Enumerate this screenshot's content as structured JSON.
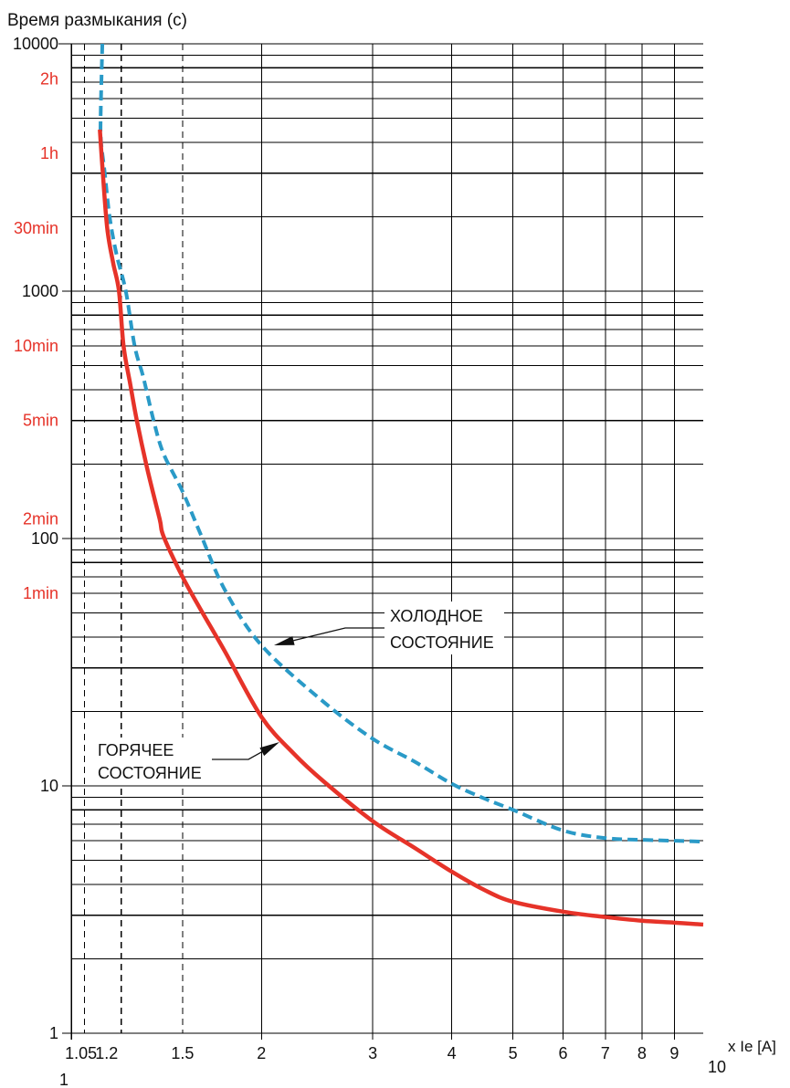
{
  "chart_data": {
    "type": "line",
    "ylabel": "Время размыкания (с)",
    "xlabel": "x Ie [A]",
    "x_scale": "log",
    "y_scale": "log",
    "xlim": [
      1,
      10
    ],
    "ylim": [
      1,
      10000
    ],
    "grid": true,
    "x_ticks": [
      {
        "value": 1,
        "label": "1",
        "grid": "solid"
      },
      {
        "value": 1.05,
        "label": "1.05",
        "grid": "dashed"
      },
      {
        "value": 1.2,
        "label": "1.2",
        "grid": "dashed"
      },
      {
        "value": 1.5,
        "label": "1.5",
        "grid": "dashed"
      },
      {
        "value": 2,
        "label": "2",
        "grid": "solid"
      },
      {
        "value": 3,
        "label": "3",
        "grid": "solid"
      },
      {
        "value": 4,
        "label": "4",
        "grid": "solid"
      },
      {
        "value": 5,
        "label": "5",
        "grid": "solid"
      },
      {
        "value": 6,
        "label": "6",
        "grid": "solid"
      },
      {
        "value": 7,
        "label": "7",
        "grid": "solid"
      },
      {
        "value": 8,
        "label": "8",
        "grid": "solid"
      },
      {
        "value": 9,
        "label": "9",
        "grid": "solid"
      },
      {
        "value": 10,
        "label": "10",
        "grid": "none"
      }
    ],
    "y_ticks": [
      {
        "value": 1,
        "label": "1"
      },
      {
        "value": 10,
        "label": "10"
      },
      {
        "value": 100,
        "label": "100"
      },
      {
        "value": 1000,
        "label": "1000"
      },
      {
        "value": 10000,
        "label": "10000"
      }
    ],
    "y_minor_grid": [
      2,
      3,
      4,
      5,
      6,
      7,
      8,
      9
    ],
    "y_time_ticks": [
      {
        "value": 7200,
        "label": "2h"
      },
      {
        "value": 3600,
        "label": "1h"
      },
      {
        "value": 1800,
        "label": "30min"
      },
      {
        "value": 600,
        "label": "10min"
      },
      {
        "value": 300,
        "label": "5min"
      },
      {
        "value": 120,
        "label": "2min"
      },
      {
        "value": 60,
        "label": "1min"
      }
    ],
    "series": [
      {
        "label": [
          "ХОЛОДНОЕ",
          "СОСТОЯНИЕ"
        ],
        "line_style": "dashed",
        "color": "#2a9ac7",
        "x": [
          1.12,
          1.113,
          1.115,
          1.13,
          1.15,
          1.18,
          1.22,
          1.26,
          1.3,
          1.35,
          1.4,
          1.5,
          1.6,
          1.75,
          2,
          2.5,
          3,
          3.5,
          4,
          4.5,
          5,
          6,
          7,
          8,
          9,
          10
        ],
        "y": [
          10000,
          5000,
          4000,
          3000,
          2000,
          1400,
          1000,
          600,
          450,
          300,
          220,
          155,
          105,
          62,
          37,
          22,
          15.5,
          12.5,
          10.2,
          8.9,
          8,
          6.6,
          6.15,
          6.05,
          6,
          5.95
        ]
      },
      {
        "label": [
          "ГОРЯЧЕЕ",
          "СОСТОЯНИЕ"
        ],
        "line_style": "solid",
        "color": "#e63329",
        "x": [
          1.11,
          1.12,
          1.14,
          1.165,
          1.19,
          1.21,
          1.24,
          1.27,
          1.32,
          1.38,
          1.4,
          1.5,
          1.6,
          1.75,
          2,
          2.25,
          2.5,
          3,
          3.5,
          4,
          4.5,
          5,
          6,
          7,
          8,
          9,
          10
        ],
        "y": [
          4500,
          3200,
          1800,
          1300,
          1000,
          600,
          420,
          300,
          190,
          120,
          102,
          70,
          52,
          35,
          19,
          13.5,
          10.5,
          7.2,
          5.6,
          4.5,
          3.8,
          3.4,
          3.1,
          2.95,
          2.85,
          2.8,
          2.75
        ]
      }
    ]
  },
  "colors": {
    "grid": "#000000",
    "time_labels": "#e63329"
  }
}
